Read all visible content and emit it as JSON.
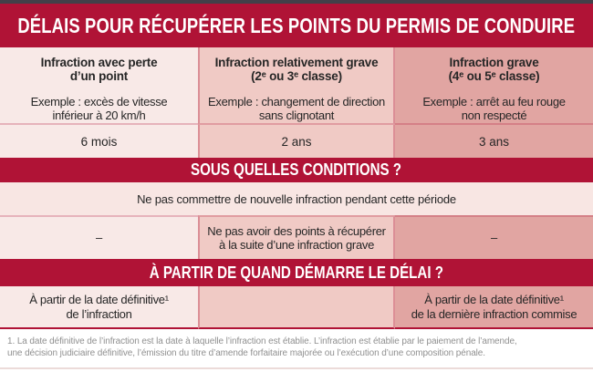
{
  "title": "DÉLAIS POUR RÉCUPÉRER LES POINTS DU PERMIS DE CONDUIRE",
  "colors": {
    "accent": "#b01336",
    "top_strip": "#444049",
    "col1_bg": "#f8e9e7",
    "col2_bg": "#f0cac5",
    "col3_bg": "#e1a5a2",
    "conditions_bg": "#f8e6e3",
    "text": "#262626",
    "footnote_text": "#909090"
  },
  "columns": [
    {
      "header": "Infraction avec perte\nd’un point",
      "example": "Exemple : excès de vitesse\ninférieur à 20 km/h",
      "delay": "6 mois",
      "extra_condition": "–",
      "delay_start": "À partir de la date définitive¹\nde l’infraction"
    },
    {
      "header": "Infraction relativement grave\n(2ᵉ ou 3ᵉ classe)",
      "example": "Exemple : changement de direction\nsans clignotant",
      "delay": "2 ans",
      "extra_condition": "Ne pas avoir des points à récupérer\nà la suite d’une infraction grave",
      "delay_start": ""
    },
    {
      "header": "Infraction grave\n(4ᵉ ou 5ᵉ classe)",
      "example": "Exemple : arrêt au feu rouge\nnon respecté",
      "delay": "3 ans",
      "extra_condition": "–",
      "delay_start": "À partir de la date définitive¹\nde la dernière infraction commise"
    }
  ],
  "sections": {
    "conditions_banner": "SOUS QUELLES CONDITIONS ?",
    "conditions_common": "Ne pas commettre de nouvelle infraction pendant cette période",
    "start_banner": "À PARTIR DE QUAND DÉMARRE LE DÉLAI ?"
  },
  "footnote": "1. La date définitive de l’infraction est la date à laquelle l’infraction est établie. L’infraction est établie par le paiement de l’amende,\nune décision judiciaire définitive, l’émission du titre d’amende forfaitaire majorée ou l’exécution d’une composition pénale."
}
